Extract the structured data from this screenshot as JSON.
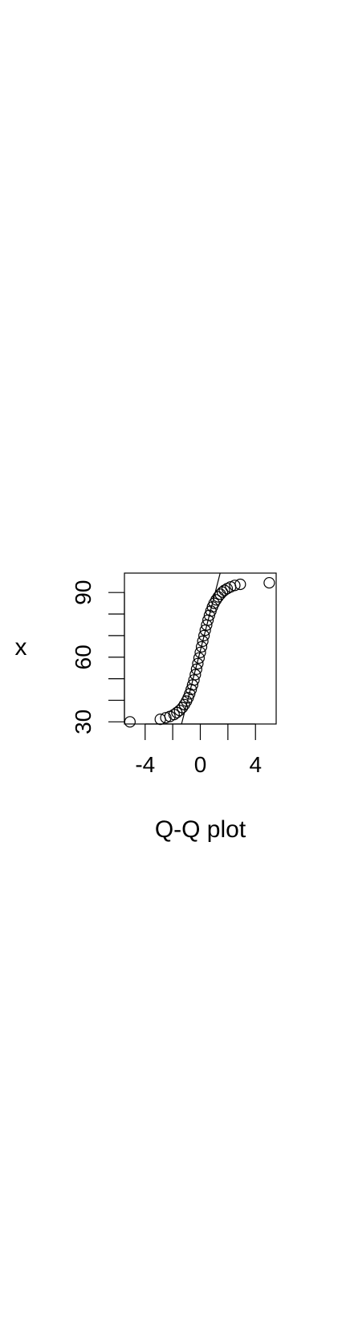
{
  "chart_data": {
    "type": "scatter",
    "title": "",
    "xlabel": "Q-Q plot",
    "ylabel": "x",
    "xlim": [
      -5.5,
      5.5
    ],
    "ylim": [
      29,
      99
    ],
    "x_ticks": [
      -4,
      -2,
      0,
      2,
      4
    ],
    "x_tick_labels": [
      "-4",
      "",
      "0",
      "",
      "4"
    ],
    "y_ticks": [
      30,
      40,
      50,
      60,
      70,
      80,
      90
    ],
    "y_tick_labels": [
      "30",
      "",
      "",
      "60",
      "",
      "",
      "90"
    ],
    "reference_line": {
      "slope": 25.0,
      "intercept": 63.0
    },
    "points": [
      [
        -5.1,
        30.0
      ],
      [
        -2.9,
        31.2
      ],
      [
        -2.5,
        31.9
      ],
      [
        -2.2,
        32.5
      ],
      [
        -1.9,
        33.4
      ],
      [
        -1.7,
        34.3
      ],
      [
        -1.5,
        35.3
      ],
      [
        -1.3,
        36.6
      ],
      [
        -1.15,
        38.0
      ],
      [
        -1.0,
        39.6
      ],
      [
        -0.88,
        41.2
      ],
      [
        -0.77,
        43.0
      ],
      [
        -0.66,
        45.0
      ],
      [
        -0.56,
        47.1
      ],
      [
        -0.46,
        49.4
      ],
      [
        -0.36,
        51.9
      ],
      [
        -0.27,
        54.4
      ],
      [
        -0.18,
        57.0
      ],
      [
        -0.09,
        59.6
      ],
      [
        0.0,
        62.2
      ],
      [
        0.09,
        64.8
      ],
      [
        0.18,
        67.4
      ],
      [
        0.27,
        70.0
      ],
      [
        0.36,
        72.5
      ],
      [
        0.46,
        74.9
      ],
      [
        0.56,
        77.2
      ],
      [
        0.66,
        79.4
      ],
      [
        0.77,
        81.4
      ],
      [
        0.88,
        83.3
      ],
      [
        1.0,
        85.0
      ],
      [
        1.15,
        86.6
      ],
      [
        1.3,
        88.0
      ],
      [
        1.45,
        89.2
      ],
      [
        1.6,
        90.2
      ],
      [
        1.75,
        91.0
      ],
      [
        1.95,
        91.8
      ],
      [
        2.2,
        92.6
      ],
      [
        2.5,
        93.3
      ],
      [
        2.9,
        93.8
      ],
      [
        5.0,
        94.5
      ]
    ]
  }
}
